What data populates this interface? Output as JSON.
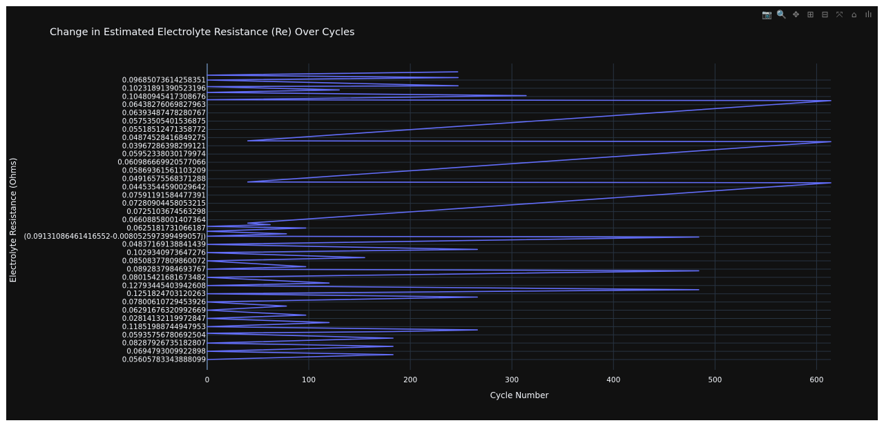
{
  "modebar": {
    "buttons": [
      {
        "name": "camera-icon",
        "glyph": "📷"
      },
      {
        "name": "zoom-icon",
        "glyph": "🔍"
      },
      {
        "name": "pan-icon",
        "glyph": "✥"
      },
      {
        "name": "zoom-in-icon",
        "glyph": "⊞"
      },
      {
        "name": "zoom-out-icon",
        "glyph": "⊟"
      },
      {
        "name": "autoscale-icon",
        "glyph": "⤧"
      },
      {
        "name": "home-icon",
        "glyph": "⌂"
      },
      {
        "name": "plotly-logo-icon",
        "glyph": "ılı"
      }
    ]
  },
  "colors": {
    "background": "#111111",
    "grid": "#283442",
    "line": "#636efa",
    "text": "#f2f5fa"
  },
  "chart_data": {
    "type": "line",
    "title": "Change in Estimated Electrolyte Resistance (Re) Over Cycles",
    "xlabel": "Cycle Number",
    "ylabel": "Electrolyte Resistance (Ohms)",
    "xlim": [
      0,
      614
    ],
    "x_ticks": [
      0,
      100,
      200,
      300,
      400,
      500,
      600
    ],
    "grid": true,
    "y_categorical": true,
    "y_categories": [
      "0.05605783343888099",
      "0.0694793009922898",
      "0.08287926735182807",
      "0.05935756780692504",
      "0.11851988744947953",
      "0.02814132119972847",
      "0.06291676320992669",
      "0.07800610729453926",
      "0.1251824703120263",
      "0.12793445403942608",
      "0.08015421681673482",
      "0.0892837984693767",
      "0.08508377809860072",
      "0.1029340973647276",
      "0.04837169138841439",
      "(0.09131086461416552-0.008052597399499057j)",
      "0.0625181731066187",
      "0.06608858001407364",
      "0.0725103674563298",
      "0.07280904458053215",
      "0.07591191584477391",
      "0.04453544590029642",
      "0.04916575568371288",
      "0.05869361561103209",
      "0.060986669920577066",
      "0.05952338030179974",
      "0.03967286398299121",
      "0.04874528416849275",
      "0.05518512471358772",
      "0.05753505401536875",
      "0.06393487478280767",
      "0.06438276069827963",
      "0.10480945417308676",
      "0.10231891390523196",
      "0.09685073614258351"
    ],
    "y_tick_labels": [
      "0.05605783343888099",
      "0.0694793009922898",
      "0.08287926735182807",
      "0.05935756780692504",
      "0.11851988744947953",
      "0.02814132119972847",
      "0.06291676320992669",
      "0.07800610729453926",
      "0.1251824703120263",
      "0.12793445403942608",
      "0.08015421681673482",
      "0.0892837984693767",
      "0.08508377809860072",
      "0.1029340973647276",
      "0.04837169138841439",
      "(0.09131086461416552-0.008052597399499057j)",
      "0.0625181731066187",
      "0.06608858001407364",
      "0.0725103674563298",
      "0.07280904458053215",
      "0.07591191584477391",
      "0.04453544590029642",
      "0.04916575568371288",
      "0.05869361561103209",
      "0.060986669920577066",
      "0.05952338030179974",
      "0.03967286398299121",
      "0.04874528416849275",
      "0.05518512471358772",
      "0.05753505401536875",
      "0.06393487478280767",
      "0.06438276069827963",
      "0.10480945417308676",
      "0.10231891390523196",
      "0.09685073614258351"
    ],
    "series": [
      {
        "points": [
          [
            0,
            0
          ],
          [
            183,
            0.6
          ],
          [
            0,
            1
          ],
          [
            183,
            1.6
          ],
          [
            0,
            2
          ],
          [
            183,
            2.6
          ],
          [
            0,
            3.2
          ],
          [
            183,
            3.4
          ],
          [
            266,
            3.6
          ],
          [
            0,
            4
          ],
          [
            120,
            4.5
          ],
          [
            0,
            5
          ],
          [
            97,
            5.4
          ],
          [
            0,
            6
          ],
          [
            78,
            6.5
          ],
          [
            0,
            7
          ],
          [
            266,
            7.6
          ],
          [
            0,
            8
          ],
          [
            484,
            8.5
          ],
          [
            0,
            9
          ],
          [
            120,
            9.3
          ],
          [
            0,
            10
          ],
          [
            484,
            10.8
          ],
          [
            0,
            11
          ],
          [
            97,
            11.3
          ],
          [
            0,
            12
          ],
          [
            155,
            12.4
          ],
          [
            0,
            13
          ],
          [
            266,
            13.4
          ],
          [
            0,
            14
          ],
          [
            484,
            14.9
          ],
          [
            0,
            15
          ],
          [
            78,
            15.3
          ],
          [
            0,
            15.6
          ],
          [
            97,
            16
          ],
          [
            0,
            16.2
          ],
          [
            62,
            16.4
          ],
          [
            40,
            16.6
          ],
          [
            614,
            21.5
          ],
          [
            40,
            21.6
          ],
          [
            614,
            26.5
          ],
          [
            40,
            26.6
          ],
          [
            614,
            31.5
          ],
          [
            0,
            31.6
          ],
          [
            314,
            32.1
          ],
          [
            0,
            32.5
          ],
          [
            130,
            32.8
          ],
          [
            0,
            33.2
          ],
          [
            247,
            33.3
          ],
          [
            0,
            34
          ],
          [
            247,
            34.3
          ],
          [
            0,
            34.6
          ],
          [
            247,
            35
          ]
        ]
      }
    ]
  }
}
